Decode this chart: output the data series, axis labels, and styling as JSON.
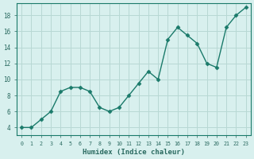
{
  "x": [
    0,
    1,
    2,
    3,
    4,
    5,
    6,
    7,
    8,
    9,
    10,
    11,
    12,
    13,
    14,
    15,
    16,
    17,
    18,
    19,
    20,
    21,
    22,
    23
  ],
  "y": [
    4,
    4,
    5,
    6,
    8.5,
    9,
    9,
    8.5,
    6.5,
    6,
    6.5,
    8,
    9.5,
    11,
    10,
    15,
    16.5,
    15.5,
    14.5,
    12,
    11.5,
    16.5,
    18,
    19
  ],
  "xlabel": "Humidex (Indice chaleur)",
  "xlim": [
    -0.5,
    23.5
  ],
  "ylim": [
    3,
    19.5
  ],
  "yticks": [
    4,
    6,
    8,
    10,
    12,
    14,
    16,
    18
  ],
  "xticks": [
    0,
    1,
    2,
    3,
    4,
    5,
    6,
    7,
    8,
    9,
    10,
    11,
    12,
    13,
    14,
    15,
    16,
    17,
    18,
    19,
    20,
    21,
    22,
    23
  ],
  "line_color": "#1a7a6a",
  "marker_color": "#1a7a6a",
  "bg_color": "#d8f0ee",
  "grid_color": "#b8d8d4",
  "tick_label_color": "#2a6a60",
  "xlabel_color": "#2a6a60"
}
